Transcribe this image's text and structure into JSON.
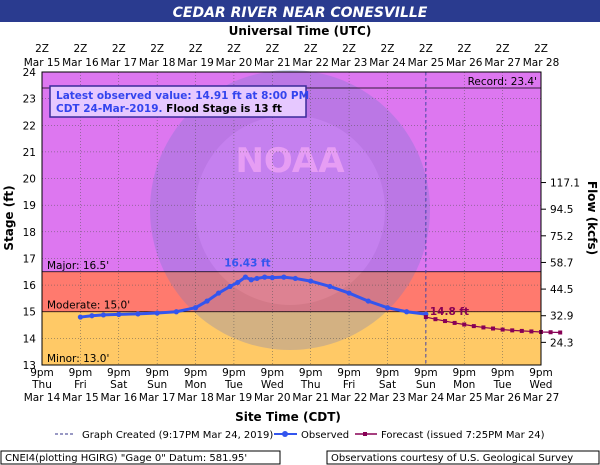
{
  "chart_data": {
    "type": "line",
    "title": "CEDAR RIVER NEAR CONESVILLE",
    "top_axis_title": "Universal Time (UTC)",
    "bottom_axis_title": "Site Time (CDT)",
    "ylabel": "Stage (ft)",
    "y2label": "Flow (kcfs)",
    "ylim": [
      13,
      24
    ],
    "y_ticks": [
      "13",
      "14",
      "15",
      "16",
      "17",
      "18",
      "19",
      "20",
      "21",
      "22",
      "23",
      "24"
    ],
    "y2_ticks": [
      {
        "stage": 13.85,
        "label": "24.3"
      },
      {
        "stage": 14.85,
        "label": "32.9"
      },
      {
        "stage": 15.85,
        "label": "44.5"
      },
      {
        "stage": 16.85,
        "label": "58.7"
      },
      {
        "stage": 17.85,
        "label": "75.2"
      },
      {
        "stage": 18.85,
        "label": "94.5"
      },
      {
        "stage": 19.85,
        "label": "117.1"
      }
    ],
    "top_ticks": [
      {
        "time": "2Z",
        "date": "Mar 15"
      },
      {
        "time": "2Z",
        "date": "Mar 16"
      },
      {
        "time": "2Z",
        "date": "Mar 17"
      },
      {
        "time": "2Z",
        "date": "Mar 18"
      },
      {
        "time": "2Z",
        "date": "Mar 19"
      },
      {
        "time": "2Z",
        "date": "Mar 20"
      },
      {
        "time": "2Z",
        "date": "Mar 21"
      },
      {
        "time": "2Z",
        "date": "Mar 22"
      },
      {
        "time": "2Z",
        "date": "Mar 23"
      },
      {
        "time": "2Z",
        "date": "Mar 24"
      },
      {
        "time": "2Z",
        "date": "Mar 25"
      },
      {
        "time": "2Z",
        "date": "Mar 26"
      },
      {
        "time": "2Z",
        "date": "Mar 27"
      },
      {
        "time": "2Z",
        "date": "Mar 28"
      }
    ],
    "bottom_ticks": [
      {
        "time": "9pm",
        "day": "Thu",
        "date": "Mar 14"
      },
      {
        "time": "9pm",
        "day": "Fri",
        "date": "Mar 15"
      },
      {
        "time": "9pm",
        "day": "Sat",
        "date": "Mar 16"
      },
      {
        "time": "9pm",
        "day": "Sun",
        "date": "Mar 17"
      },
      {
        "time": "9pm",
        "day": "Mon",
        "date": "Mar 18"
      },
      {
        "time": "9pm",
        "day": "Tue",
        "date": "Mar 19"
      },
      {
        "time": "9pm",
        "day": "Wed",
        "date": "Mar 20"
      },
      {
        "time": "9pm",
        "day": "Thu",
        "date": "Mar 21"
      },
      {
        "time": "9pm",
        "day": "Fri",
        "date": "Mar 22"
      },
      {
        "time": "9pm",
        "day": "Sat",
        "date": "Mar 23"
      },
      {
        "time": "9pm",
        "day": "Sun",
        "date": "Mar 24"
      },
      {
        "time": "9pm",
        "day": "Mon",
        "date": "Mar 25"
      },
      {
        "time": "9pm",
        "day": "Tue",
        "date": "Mar 26"
      },
      {
        "time": "9pm",
        "day": "Wed",
        "date": "Mar 27"
      }
    ],
    "flood_bands": [
      {
        "name": "Minor",
        "label": "Minor: 13.0'",
        "from": 13.0,
        "to": 15.0,
        "color": "#ffc966"
      },
      {
        "name": "Moderate",
        "label": "Moderate: 15.0'",
        "from": 15.0,
        "to": 16.5,
        "color": "#ff7a6e"
      },
      {
        "name": "Major",
        "label": "Major: 16.5'",
        "from": 16.5,
        "to": 24.0,
        "color": "#dd77f0"
      }
    ],
    "record": {
      "label": "Record: 23.4'",
      "value": 23.4
    },
    "info_box": {
      "line1": "Latest observed value: 14.91 ft at 8:00 PM",
      "line2a": "CDT 24-Mar-2019.",
      "line2b": " Flood Stage is 13 ft"
    },
    "peak_label": {
      "text": "16.43 ft",
      "x": 5.3,
      "y": 16.43
    },
    "forecast_label": {
      "text": "14.8 ft",
      "x": 10.0,
      "y": 14.8
    },
    "x_unit": "days since Mar 14 9pm CDT",
    "observed": {
      "name": "Observed",
      "color": "#3355ee",
      "points": [
        [
          1.0,
          14.8
        ],
        [
          1.3,
          14.85
        ],
        [
          1.6,
          14.88
        ],
        [
          2.0,
          14.9
        ],
        [
          2.5,
          14.92
        ],
        [
          3.0,
          14.95
        ],
        [
          3.5,
          15.0
        ],
        [
          4.0,
          15.15
        ],
        [
          4.3,
          15.4
        ],
        [
          4.6,
          15.7
        ],
        [
          4.9,
          15.95
        ],
        [
          5.1,
          16.1
        ],
        [
          5.3,
          16.3
        ],
        [
          5.45,
          16.2
        ],
        [
          5.6,
          16.25
        ],
        [
          5.8,
          16.3
        ],
        [
          6.0,
          16.28
        ],
        [
          6.3,
          16.3
        ],
        [
          6.6,
          16.25
        ],
        [
          7.0,
          16.15
        ],
        [
          7.5,
          15.95
        ],
        [
          8.0,
          15.7
        ],
        [
          8.5,
          15.4
        ],
        [
          9.0,
          15.15
        ],
        [
          9.5,
          15.0
        ],
        [
          10.0,
          14.91
        ]
      ]
    },
    "forecast": {
      "name": "Forecast",
      "color": "#880055",
      "points": [
        [
          10.0,
          14.8
        ],
        [
          10.25,
          14.72
        ],
        [
          10.5,
          14.65
        ],
        [
          10.75,
          14.58
        ],
        [
          11.0,
          14.52
        ],
        [
          11.25,
          14.46
        ],
        [
          11.5,
          14.41
        ],
        [
          11.75,
          14.37
        ],
        [
          12.0,
          14.33
        ],
        [
          12.25,
          14.3
        ],
        [
          12.5,
          14.28
        ],
        [
          12.75,
          14.26
        ],
        [
          13.0,
          14.24
        ],
        [
          13.25,
          14.23
        ],
        [
          13.5,
          14.22
        ]
      ]
    },
    "legend": {
      "created": "Graph Created (9:17PM Mar 24, 2019)",
      "observed": "Observed",
      "forecast": "Forecast (issued 7:25PM Mar 24)"
    },
    "footer_left": "CNEI4(plotting HGIRG) \"Gage 0\" Datum:  581.95'",
    "footer_right": "Observations courtesy of U.S. Geological Survey",
    "watermark_text": "NOAA"
  }
}
